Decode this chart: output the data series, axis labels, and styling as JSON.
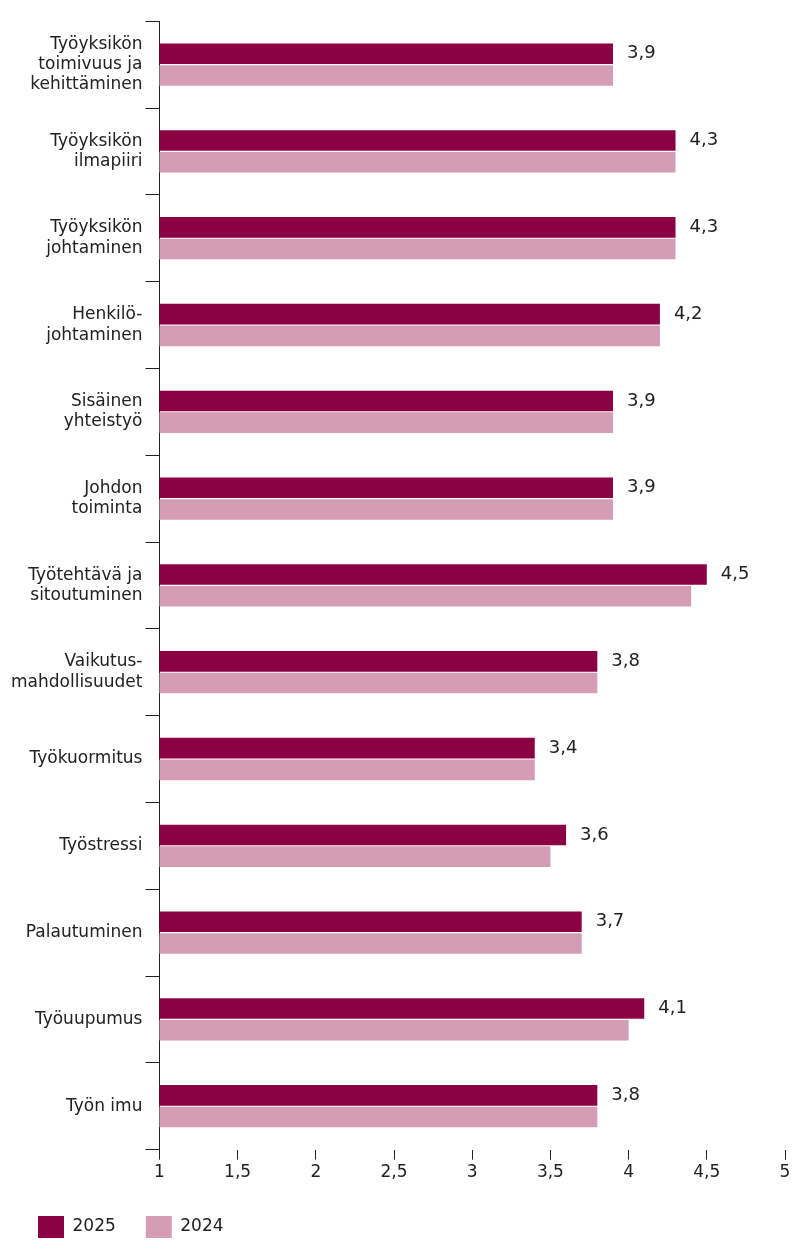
{
  "chart_data": {
    "type": "bar",
    "orientation": "horizontal",
    "categories": [
      "Työyksikön\ntoimivuus ja\nkehittäminen",
      "Työyksikön\nilmapiiri",
      "Työyksikön\njohtaminen",
      "Henkilö-\njohtaminen",
      "Sisäinen\nyhteistyö",
      "Johdon\ntoiminta",
      "Työtehtävä ja\nsitoutuminen",
      "Vaikutus-\nmahdollisuudet",
      "Työkuormitus",
      "Työstressi",
      "Palautuminen",
      "Työuupumus",
      "Työn imu"
    ],
    "series": [
      {
        "name": "2025",
        "color": "#8c0044",
        "values": [
          3.9,
          4.3,
          4.3,
          4.2,
          3.9,
          3.9,
          4.5,
          3.8,
          3.4,
          3.6,
          3.7,
          4.1,
          3.8
        ],
        "value_labels": [
          "3,9",
          "4,3",
          "4,3",
          "4,2",
          "3,9",
          "3,9",
          "4,5",
          "3,8",
          "3,4",
          "3,6",
          "3,7",
          "4,1",
          "3,8"
        ]
      },
      {
        "name": "2024",
        "color": "#d49db3",
        "values": [
          3.9,
          4.3,
          4.3,
          4.2,
          3.9,
          3.9,
          4.4,
          3.8,
          3.4,
          3.5,
          3.7,
          4.0,
          3.8
        ]
      }
    ],
    "xlim": [
      1,
      5
    ],
    "xticks": [
      1,
      {
        "value": 1.5,
        "label": "1,5"
      },
      2,
      {
        "value": 2.5,
        "label": "2,5"
      },
      3,
      {
        "value": 3.5,
        "label": "3,5"
      },
      4,
      {
        "value": 4.5,
        "label": "4,5"
      },
      5
    ],
    "grid": false,
    "legend": "bottom"
  }
}
